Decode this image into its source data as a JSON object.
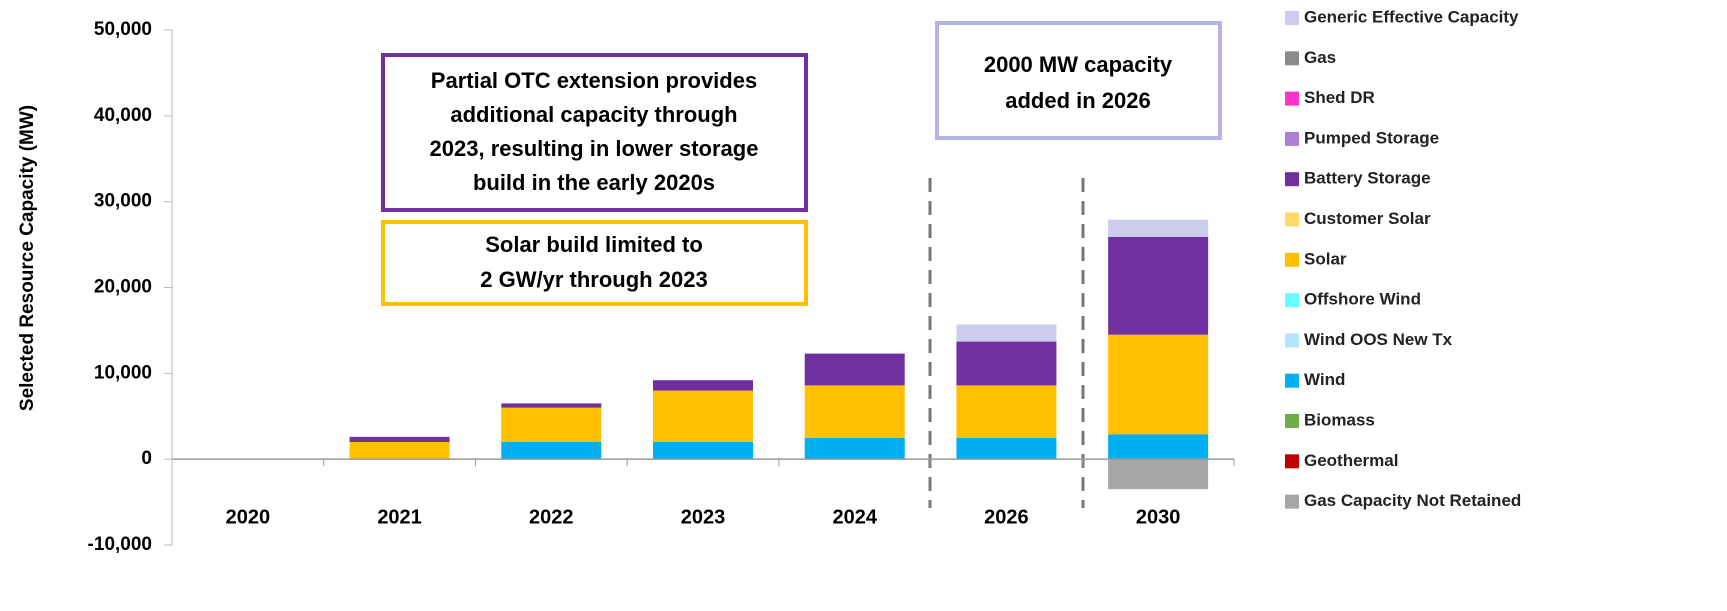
{
  "chart_data": {
    "type": "bar",
    "stacked": true,
    "y_label": "Selected Resource Capacity (MW)",
    "categories": [
      "2020",
      "2021",
      "2022",
      "2023",
      "2024",
      "2026",
      "2030"
    ],
    "ylim": [
      -10000,
      50000
    ],
    "yticks": [
      {
        "value": -10000,
        "label": "-10,000"
      },
      0,
      {
        "value": 10000,
        "label": "10,000"
      },
      {
        "value": 20000,
        "label": "20,000"
      },
      {
        "value": 30000,
        "label": "30,000"
      },
      {
        "value": 40000,
        "label": "40,000"
      },
      {
        "value": 50000,
        "label": "50,000"
      }
    ],
    "series": [
      {
        "name": "Generic Effective Capacity",
        "color": "#ccccec",
        "values": [
          0,
          0,
          0,
          0,
          0,
          2000,
          2000
        ]
      },
      {
        "name": "Gas",
        "color": "#8c8c8c",
        "values": [
          0,
          0,
          0,
          0,
          0,
          0,
          0
        ]
      },
      {
        "name": "Shed DR",
        "color": "#ff33cc",
        "values": [
          0,
          0,
          0,
          0,
          0,
          0,
          0
        ]
      },
      {
        "name": "Pumped Storage",
        "color": "#b07fd6",
        "values": [
          0,
          0,
          0,
          0,
          0,
          0,
          0
        ]
      },
      {
        "name": "Battery Storage",
        "color": "#7030a0",
        "values": [
          0,
          600,
          500,
          1200,
          3700,
          5100,
          11400
        ]
      },
      {
        "name": "Customer Solar",
        "color": "#ffd966",
        "values": [
          0,
          0,
          0,
          0,
          0,
          0,
          0
        ]
      },
      {
        "name": "Solar",
        "color": "#ffc000",
        "values": [
          0,
          2000,
          4000,
          6000,
          6100,
          6100,
          11600
        ]
      },
      {
        "name": "Offshore Wind",
        "color": "#66ffff",
        "values": [
          0,
          0,
          0,
          0,
          0,
          0,
          0
        ]
      },
      {
        "name": "Wind OOS New Tx",
        "color": "#b3e5fc",
        "values": [
          0,
          0,
          0,
          0,
          0,
          0,
          0
        ]
      },
      {
        "name": "Wind",
        "color": "#00b0f0",
        "values": [
          0,
          0,
          2000,
          2000,
          2500,
          2500,
          2900
        ]
      },
      {
        "name": "Biomass",
        "color": "#70ad47",
        "values": [
          0,
          0,
          0,
          0,
          0,
          0,
          0
        ]
      },
      {
        "name": "Geothermal",
        "color": "#c00000",
        "values": [
          0,
          0,
          0,
          0,
          0,
          0,
          0
        ]
      },
      {
        "name": "Gas Capacity Not Retained",
        "color": "#a6a6a6",
        "values": [
          0,
          0,
          0,
          0,
          0,
          0,
          -3500
        ]
      }
    ],
    "annotations": [
      {
        "lines": [
          "Partial OTC extension provides",
          "additional capacity through",
          "2023, resulting in lower storage",
          "build in the early 2020s"
        ],
        "color": "#7030a0"
      },
      {
        "lines": [
          "Solar build limited to",
          "2 GW/yr through 2023"
        ],
        "color": "#ffc000"
      },
      {
        "lines": [
          "2000 MW capacity",
          "added in 2026"
        ],
        "color": "#b4b4e6"
      }
    ]
  }
}
